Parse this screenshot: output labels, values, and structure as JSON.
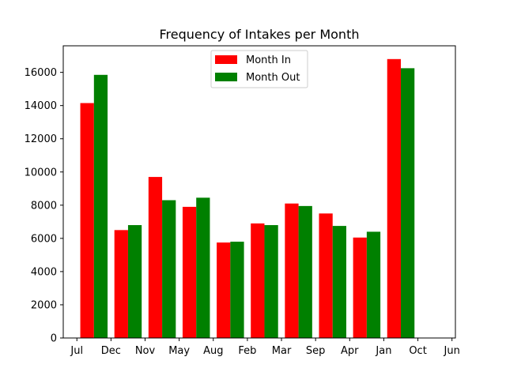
{
  "chart_data": {
    "type": "bar",
    "title": "Frequency of Intakes per Month",
    "xlabel": "",
    "ylabel": "",
    "x_ticks": [
      "Jul",
      "Dec",
      "Nov",
      "May",
      "Aug",
      "Feb",
      "Mar",
      "Sep",
      "Apr",
      "Jan",
      "Oct",
      "Jun"
    ],
    "categories": [
      "Dec",
      "Nov",
      "May",
      "Aug",
      "Feb",
      "Mar",
      "Sep",
      "Apr",
      "Jan",
      "Oct"
    ],
    "series": [
      {
        "name": "Month In",
        "color": "#ff0000",
        "values": [
          14150,
          6500,
          9700,
          7900,
          5750,
          6900,
          8100,
          7500,
          6050,
          16800
        ]
      },
      {
        "name": "Month Out",
        "color": "#008000",
        "values": [
          15850,
          6800,
          8300,
          8450,
          5800,
          6800,
          7950,
          6750,
          6400,
          16250
        ]
      }
    ],
    "ylim": [
      0,
      17600
    ],
    "yticks": [
      0,
      2000,
      4000,
      6000,
      8000,
      10000,
      12000,
      14000,
      16000
    ],
    "legend_position": "top-center",
    "grid": false
  }
}
